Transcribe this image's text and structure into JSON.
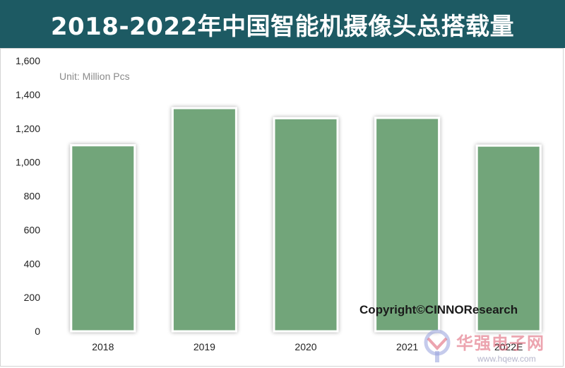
{
  "header": {
    "title": "2018-2022年中国智能机摄像头总搭载量"
  },
  "chart_data": {
    "type": "bar",
    "title": "2018-2022年中国智能机摄像头总搭载量",
    "unit_label": "Unit:  Million Pcs",
    "categories": [
      "2018",
      "2019",
      "2020",
      "2021",
      "2022E"
    ],
    "values": [
      1100,
      1320,
      1260,
      1262,
      1098
    ],
    "ylim": [
      0,
      1600
    ],
    "yticks": [
      "0",
      "200",
      "400",
      "600",
      "800",
      "1,000",
      "1,200",
      "1,400",
      "1,600"
    ],
    "grid": false,
    "bar_color": "#72a57a",
    "xlabel": "",
    "ylabel": ""
  },
  "footer": {
    "copyright": "Copyright©CINNOResearch"
  },
  "watermark": {
    "name": "华强电子网",
    "url": "www.hqew.com"
  }
}
